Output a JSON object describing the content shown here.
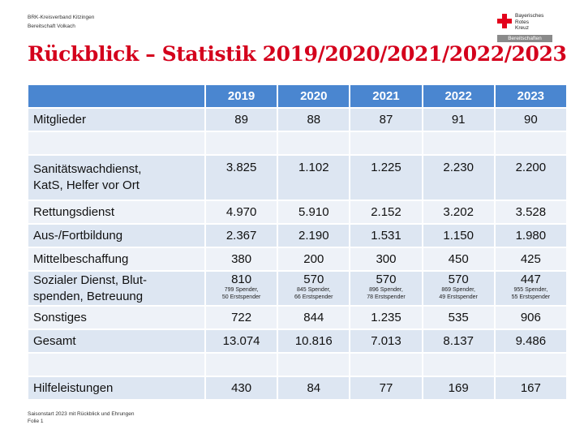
{
  "header": {
    "org_line1": "BRK-Kreisverband Kitzingen",
    "org_line2": "Bereitschaft Volkach",
    "logo_line1": "Bayerisches",
    "logo_line2": "Rotes",
    "logo_line3": "Kreuz",
    "logo_bar": "Bereitschaften"
  },
  "title": "Rückblick – Statistik 2019/2020/2021/2022/2023",
  "table": {
    "years": [
      "2019",
      "2020",
      "2021",
      "2022",
      "2023"
    ],
    "rows": [
      {
        "label": "Mitglieder",
        "values": [
          "89",
          "88",
          "87",
          "91",
          "90"
        ]
      },
      {
        "label": "",
        "values": [
          "",
          "",
          "",
          "",
          ""
        ]
      },
      {
        "label_line1": "Sanitätswachdienst,",
        "label_line2": "KatS, Helfer vor Ort",
        "values": [
          "3.825",
          "1.102",
          "1.225",
          "2.230",
          "2.200"
        ]
      },
      {
        "label": "Rettungsdienst",
        "values": [
          "4.970",
          "5.910",
          "2.152",
          "3.202",
          "3.528"
        ]
      },
      {
        "label": "Aus-/Fortbildung",
        "values": [
          "2.367",
          "2.190",
          "1.531",
          "1.150",
          "1.980"
        ]
      },
      {
        "label": "Mittelbeschaffung",
        "values": [
          "380",
          "200",
          "300",
          "450",
          "425"
        ]
      },
      {
        "label_line1": "Sozialer Dienst, Blut-",
        "label_line2": "spenden, Betreuung",
        "values": [
          "810",
          "570",
          "570",
          "570",
          "447"
        ],
        "sub1": [
          "799 Spender,",
          "845 Spender,",
          "896 Spender,",
          "869 Spender,",
          "955 Spender,"
        ],
        "sub2": [
          "50 Erstspender",
          "66 Erstspender",
          "78 Erstspender",
          "49 Erstspender",
          "55 Erstspender"
        ]
      },
      {
        "label": "Sonstiges",
        "values": [
          "722",
          "844",
          "1.235",
          "535",
          "906"
        ]
      },
      {
        "label": "Gesamt",
        "values": [
          "13.074",
          "10.816",
          "7.013",
          "8.137",
          "9.486"
        ]
      },
      {
        "label": "",
        "values": [
          "",
          "",
          "",
          "",
          ""
        ]
      },
      {
        "label": "Hilfeleistungen",
        "values": [
          "430",
          "84",
          "77",
          "169",
          "167"
        ]
      }
    ]
  },
  "footer": {
    "line1": "Saisonstart 2023 mit Rückblick und Ehrungen",
    "line2": "Folie 1"
  },
  "colors": {
    "title_red": "#d4001c",
    "header_blue": "#4a86d0",
    "row_dark": "#dde6f2",
    "row_light": "#eef2f8"
  }
}
